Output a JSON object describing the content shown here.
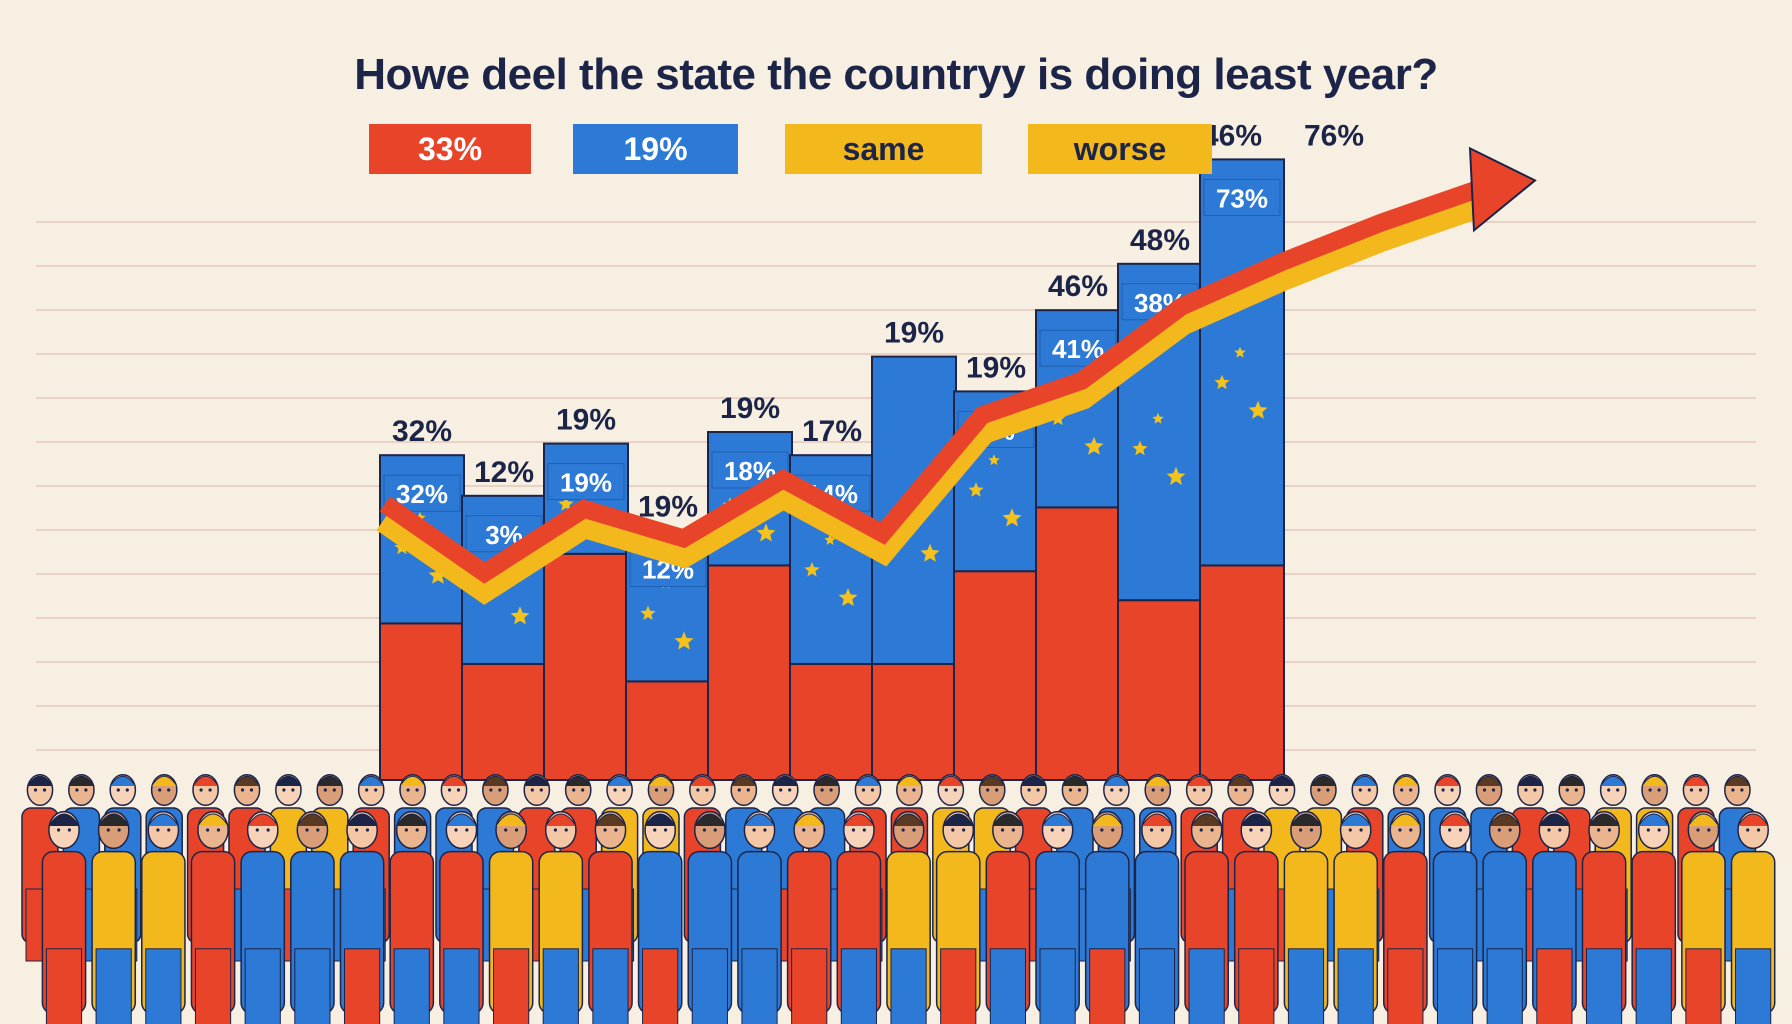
{
  "chart_data": {
    "type": "bar",
    "title": "Howe deel the state the countryy is doing least year?",
    "legend": [
      {
        "label": "33%",
        "color": "#e8442a"
      },
      {
        "label": "19%",
        "color": "#2d7ad6"
      },
      {
        "label": "same",
        "color": "#f3b81c"
      },
      {
        "label": "worse",
        "color": "#f3b81c"
      }
    ],
    "ylim": [
      0,
      100
    ],
    "grid": true,
    "series": [
      {
        "color": "#e8442a",
        "values": [
          27,
          20,
          39,
          17,
          37,
          20,
          20,
          36,
          47,
          31,
          37
        ]
      },
      {
        "color": "#2d7ad6",
        "values": [
          29,
          29,
          19,
          26,
          23,
          36,
          53,
          31,
          34,
          58,
          70
        ]
      }
    ],
    "top_labels": [
      "32%",
      "12%",
      "19%",
      "19%",
      "19%",
      "17%",
      "19%",
      "19%",
      "46%",
      "48%",
      "46%",
      "76%"
    ],
    "inner_labels": [
      "32%",
      "3%",
      "19%",
      "12%",
      "18%",
      "14%",
      "1%",
      "41%",
      "38%",
      "73%"
    ],
    "trend": [
      36,
      22,
      35,
      29,
      41,
      30,
      54,
      61,
      76,
      85,
      93,
      100
    ],
    "colors": {
      "red": "#e8442a",
      "blue": "#2d7ad6",
      "yellow": "#f3b81c",
      "star": "#f3c21c",
      "ink": "#1c2448"
    }
  }
}
